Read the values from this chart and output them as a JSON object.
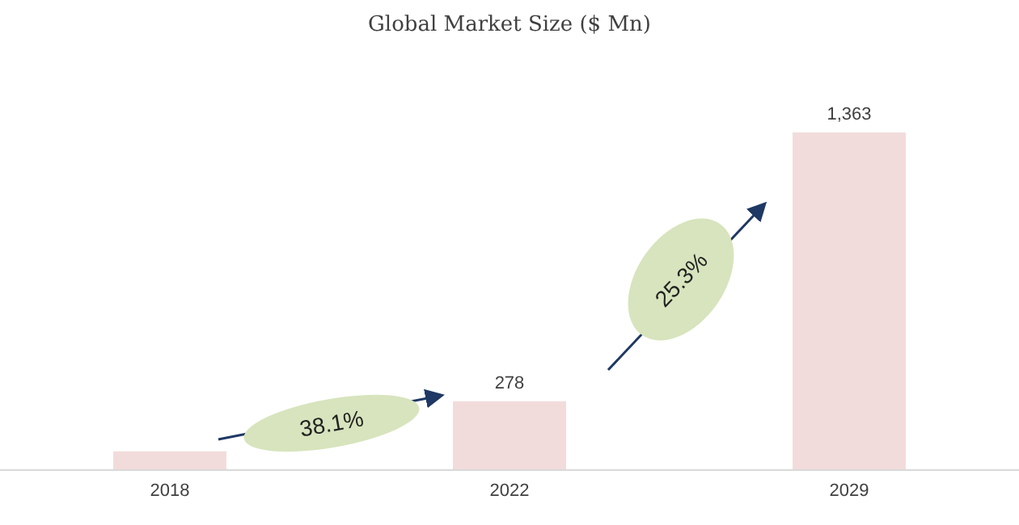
{
  "chart_data": {
    "type": "bar",
    "title": "Global Market Size ($ Mn)",
    "categories": [
      "2018",
      "2022",
      "2029"
    ],
    "values": [
      76,
      278,
      1363
    ],
    "value_labels": [
      null,
      "278",
      "1,363"
    ],
    "color": "#f2dcdb",
    "annotations": [
      "38.1%",
      "25.3%"
    ]
  }
}
